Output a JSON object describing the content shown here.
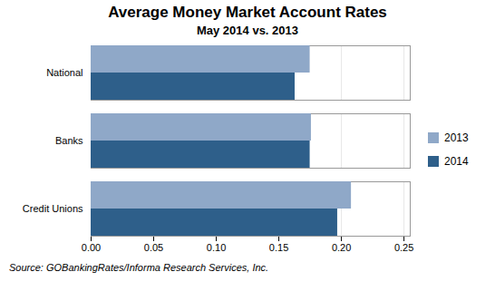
{
  "chart_data": {
    "type": "bar",
    "orientation": "horizontal",
    "title": "Average Money Market Account Rates",
    "subtitle": "May 2014 vs. 2013",
    "source": "Source: GOBankingRates/Informa Research Services, Inc.",
    "categories": [
      "Credit Unions",
      "Banks",
      "National"
    ],
    "series": [
      {
        "name": "2013",
        "color": "#8FA8C8",
        "values": [
          0.208,
          0.176,
          0.175
        ]
      },
      {
        "name": "2014",
        "color": "#2E5F8A",
        "values": [
          0.197,
          0.175,
          0.163
        ]
      }
    ],
    "xlim": [
      0,
      0.255
    ],
    "xticks": [
      {
        "value": 0,
        "label": "0.00"
      },
      0.05,
      {
        "value": 0.1,
        "label": "0.10"
      },
      0.15,
      {
        "value": 0.2,
        "label": "0.20"
      },
      0.25
    ],
    "grid": true,
    "legend": "right"
  }
}
